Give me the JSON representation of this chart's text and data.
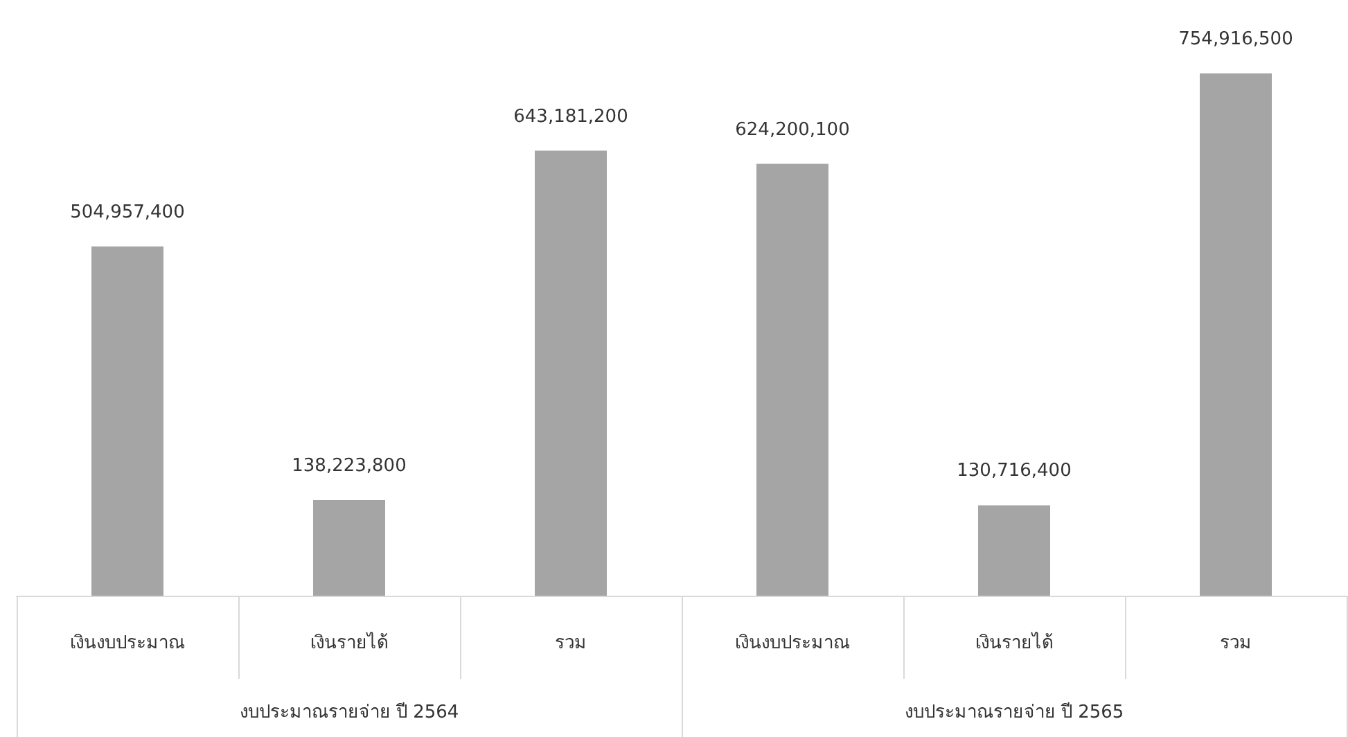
{
  "chart_data": {
    "type": "bar",
    "categories": [
      "เงินงบประมาณ",
      "เงินรายได้",
      "รวม",
      "เงินงบประมาณ",
      "เงินรายได้",
      "รวม"
    ],
    "values": [
      504957400,
      138223800,
      643181200,
      624200100,
      130716400,
      754916500
    ],
    "value_labels": [
      "504,957,400",
      "138,223,800",
      "643,181,200",
      "624,200,100",
      "130,716,400",
      "754,916,500"
    ],
    "color": "#a5a5a5",
    "grid": false,
    "annotations": [
      "งบประมาณรายจ่าย ปี 2564",
      "งบประมาณรายจ่าย ปี 2565"
    ]
  }
}
